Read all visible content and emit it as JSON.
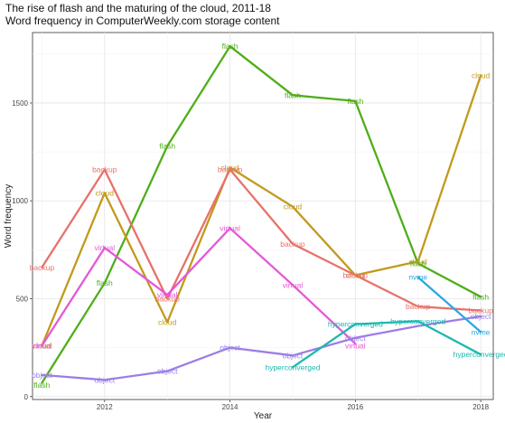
{
  "chart_data": {
    "type": "line",
    "title": "The rise of flash and the maturing of the cloud, 2011-18",
    "subtitle": "Word frequency in ComputerWeekly.com storage content",
    "xlabel": "Year",
    "ylabel": "Word frequency",
    "xlim": [
      2010.85,
      2018.2
    ],
    "ylim": [
      -15,
      1860
    ],
    "x_ticks": [
      2012,
      2014,
      2016,
      2018
    ],
    "y_ticks": [
      0,
      500,
      1000,
      1500
    ],
    "grid": true,
    "legend": "none",
    "series": [
      {
        "name": "flash",
        "color": "#4fae1a",
        "x": [
          2011,
          2012,
          2013,
          2014,
          2015,
          2016,
          2017,
          2018
        ],
        "y": [
          70,
          580,
          1280,
          1790,
          1540,
          1510,
          680,
          510
        ]
      },
      {
        "name": "cloud",
        "color": "#c19a1b",
        "x": [
          2011,
          2012,
          2013,
          2014,
          2015,
          2016,
          2017,
          2018
        ],
        "y": [
          260,
          1040,
          380,
          1170,
          970,
          620,
          690,
          1640
        ]
      },
      {
        "name": "backup",
        "color": "#e8716a",
        "x": [
          2011,
          2012,
          2013,
          2014,
          2015,
          2016,
          2017,
          2018
        ],
        "y": [
          660,
          1160,
          500,
          1160,
          780,
          620,
          460,
          440
        ]
      },
      {
        "name": "virtual",
        "color": "#e558d8",
        "x": [
          2011,
          2012,
          2013,
          2014,
          2015,
          2016
        ],
        "y": [
          260,
          760,
          520,
          860,
          570,
          270
        ]
      },
      {
        "name": "object",
        "color": "#9b7ee6",
        "x": [
          2011,
          2012,
          2013,
          2014,
          2015,
          2016,
          2017,
          2018
        ],
        "y": [
          110,
          85,
          130,
          250,
          210,
          300,
          360,
          410
        ]
      },
      {
        "name": "hyperconverged",
        "color": "#1cb8b0",
        "x": [
          2015,
          2016,
          2017,
          2018
        ],
        "y": [
          150,
          370,
          385,
          215
        ]
      },
      {
        "name": "nvme",
        "color": "#2aa8df",
        "x": [
          2017,
          2018
        ],
        "y": [
          610,
          330
        ]
      }
    ],
    "labels": [
      {
        "text": "flash",
        "series": 0,
        "x": 2011,
        "y": 60
      },
      {
        "text": "flash",
        "series": 0,
        "x": 2012,
        "y": 580
      },
      {
        "text": "flash",
        "series": 0,
        "x": 2013,
        "y": 1280
      },
      {
        "text": "flash",
        "series": 0,
        "x": 2014,
        "y": 1790
      },
      {
        "text": "flash",
        "series": 0,
        "x": 2015,
        "y": 1540
      },
      {
        "text": "flash",
        "series": 0,
        "x": 2016,
        "y": 1510
      },
      {
        "text": "flash",
        "series": 0,
        "x": 2017,
        "y": 680
      },
      {
        "text": "flash",
        "series": 0,
        "x": 2018,
        "y": 510
      },
      {
        "text": "cloud",
        "series": 1,
        "x": 2011,
        "y": 260
      },
      {
        "text": "cloud",
        "series": 1,
        "x": 2012,
        "y": 1040
      },
      {
        "text": "cloud",
        "series": 1,
        "x": 2013,
        "y": 380
      },
      {
        "text": "cloud",
        "series": 1,
        "x": 2014,
        "y": 1170
      },
      {
        "text": "cloud",
        "series": 1,
        "x": 2015,
        "y": 970
      },
      {
        "text": "cloud",
        "series": 1,
        "x": 2016,
        "y": 620
      },
      {
        "text": "cloud",
        "series": 1,
        "x": 2017,
        "y": 690
      },
      {
        "text": "cloud",
        "series": 1,
        "x": 2018,
        "y": 1640
      },
      {
        "text": "backup",
        "series": 2,
        "x": 2011,
        "y": 660
      },
      {
        "text": "backup",
        "series": 2,
        "x": 2012,
        "y": 1160
      },
      {
        "text": "backup",
        "series": 2,
        "x": 2013,
        "y": 500
      },
      {
        "text": "backup",
        "series": 2,
        "x": 2014,
        "y": 1160
      },
      {
        "text": "backup",
        "series": 2,
        "x": 2015,
        "y": 780
      },
      {
        "text": "backup",
        "series": 2,
        "x": 2016,
        "y": 620
      },
      {
        "text": "backup",
        "series": 2,
        "x": 2017,
        "y": 460
      },
      {
        "text": "backup",
        "series": 2,
        "x": 2018,
        "y": 440
      },
      {
        "text": "virtual",
        "series": 3,
        "x": 2011,
        "y": 260
      },
      {
        "text": "virtual",
        "series": 3,
        "x": 2012,
        "y": 760
      },
      {
        "text": "virtual",
        "series": 3,
        "x": 2013,
        "y": 520
      },
      {
        "text": "virtual",
        "series": 3,
        "x": 2014,
        "y": 860
      },
      {
        "text": "virtual",
        "series": 3,
        "x": 2015,
        "y": 570
      },
      {
        "text": "virtual",
        "series": 3,
        "x": 2016,
        "y": 260
      },
      {
        "text": "object",
        "series": 4,
        "x": 2011,
        "y": 110
      },
      {
        "text": "object",
        "series": 4,
        "x": 2012,
        "y": 85
      },
      {
        "text": "object",
        "series": 4,
        "x": 2013,
        "y": 130
      },
      {
        "text": "object",
        "series": 4,
        "x": 2014,
        "y": 250
      },
      {
        "text": "object",
        "series": 4,
        "x": 2015,
        "y": 210
      },
      {
        "text": "object",
        "series": 4,
        "x": 2016,
        "y": 300
      },
      {
        "text": "object",
        "series": 4,
        "x": 2018,
        "y": 410
      },
      {
        "text": "hyperconverged",
        "series": 5,
        "x": 2015,
        "y": 150
      },
      {
        "text": "hyperconverged",
        "series": 5,
        "x": 2016,
        "y": 370
      },
      {
        "text": "hyperconverged",
        "series": 5,
        "x": 2017,
        "y": 385
      },
      {
        "text": "hyperconverged",
        "series": 5,
        "x": 2018,
        "y": 215
      },
      {
        "text": "nvme",
        "series": 6,
        "x": 2017,
        "y": 610
      },
      {
        "text": "nvme",
        "series": 6,
        "x": 2018,
        "y": 330
      }
    ]
  }
}
